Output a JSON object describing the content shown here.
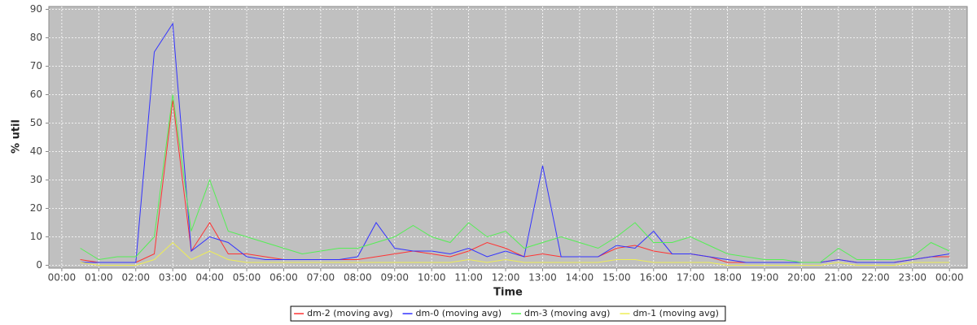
{
  "chart_data": {
    "type": "line",
    "x_label": "Time",
    "y_label": "% util",
    "x": [
      0.5,
      1,
      1.5,
      2,
      2.5,
      3,
      3.5,
      4,
      4.5,
      5,
      5.5,
      6,
      6.5,
      7,
      7.5,
      8,
      8.5,
      9,
      9.5,
      10,
      10.5,
      11,
      11.5,
      12,
      12.5,
      13,
      13.5,
      14,
      14.5,
      15,
      15.5,
      16,
      16.5,
      17,
      17.5,
      18,
      18.5,
      19,
      19.5,
      20,
      20.5,
      21,
      21.5,
      22,
      22.5,
      23,
      23.5,
      24
    ],
    "series": [
      {
        "name": "dm-2 (moving avg)",
        "color": "#ff3333",
        "values": [
          2,
          1,
          1,
          1,
          4,
          58,
          5,
          15,
          4,
          4,
          3,
          2,
          2,
          2,
          2,
          2,
          3,
          4,
          5,
          4,
          3,
          5,
          8,
          6,
          3,
          4,
          3,
          3,
          3,
          6,
          7,
          5,
          4,
          4,
          3,
          1,
          1,
          1,
          1,
          1,
          1,
          2,
          1,
          1,
          1,
          2,
          3,
          3
        ]
      },
      {
        "name": "dm-0 (moving avg)",
        "color": "#3333ff",
        "values": [
          1,
          1,
          1,
          1,
          75,
          85,
          5,
          10,
          8,
          3,
          2,
          2,
          2,
          2,
          2,
          3,
          15,
          6,
          5,
          5,
          4,
          6,
          3,
          5,
          3,
          35,
          3,
          3,
          3,
          7,
          6,
          12,
          4,
          4,
          3,
          2,
          1,
          1,
          1,
          1,
          1,
          2,
          1,
          1,
          1,
          2,
          3,
          4
        ]
      },
      {
        "name": "dm-3 (moving avg)",
        "color": "#55ee55",
        "values": [
          6,
          2,
          3,
          3,
          10,
          60,
          12,
          30,
          12,
          10,
          8,
          6,
          4,
          5,
          6,
          6,
          8,
          10,
          14,
          10,
          8,
          15,
          10,
          12,
          6,
          8,
          10,
          8,
          6,
          10,
          15,
          8,
          8,
          10,
          7,
          4,
          3,
          2,
          2,
          1,
          1,
          6,
          2,
          2,
          2,
          3,
          8,
          5
        ]
      },
      {
        "name": "dm-1 (moving avg)",
        "color": "#eeee55",
        "values": [
          1,
          0,
          0,
          0,
          2,
          8,
          2,
          5,
          2,
          1,
          1,
          1,
          1,
          1,
          1,
          1,
          1,
          1,
          1,
          1,
          1,
          2,
          1,
          2,
          1,
          1,
          1,
          1,
          1,
          2,
          2,
          1,
          1,
          1,
          1,
          0,
          0,
          0,
          0,
          0,
          0,
          1,
          0,
          0,
          0,
          1,
          1,
          1
        ]
      }
    ],
    "xlim": [
      -0.35,
      24.48
    ],
    "ylim": [
      -1,
      91
    ],
    "xticks": [
      {
        "value": 0,
        "label": "00:00"
      },
      {
        "value": 1,
        "label": "01:00"
      },
      {
        "value": 2,
        "label": "02:00"
      },
      {
        "value": 3,
        "label": "03:00"
      },
      {
        "value": 4,
        "label": "04:00"
      },
      {
        "value": 5,
        "label": "05:00"
      },
      {
        "value": 6,
        "label": "06:00"
      },
      {
        "value": 7,
        "label": "07:00"
      },
      {
        "value": 8,
        "label": "08:00"
      },
      {
        "value": 9,
        "label": "09:00"
      },
      {
        "value": 10,
        "label": "10:00"
      },
      {
        "value": 11,
        "label": "11:00"
      },
      {
        "value": 12,
        "label": "12:00"
      },
      {
        "value": 13,
        "label": "13:00"
      },
      {
        "value": 14,
        "label": "14:00"
      },
      {
        "value": 15,
        "label": "15:00"
      },
      {
        "value": 16,
        "label": "16:00"
      },
      {
        "value": 17,
        "label": "17:00"
      },
      {
        "value": 18,
        "label": "18:00"
      },
      {
        "value": 19,
        "label": "19:00"
      },
      {
        "value": 20,
        "label": "20:00"
      },
      {
        "value": 21,
        "label": "21:00"
      },
      {
        "value": 22,
        "label": "22:00"
      },
      {
        "value": 23,
        "label": "23:00"
      },
      {
        "value": 24,
        "label": "00:00"
      }
    ],
    "yticks": [
      0,
      10,
      20,
      30,
      40,
      50,
      60,
      70,
      80,
      90
    ],
    "grid": true,
    "legend": "bottom"
  }
}
